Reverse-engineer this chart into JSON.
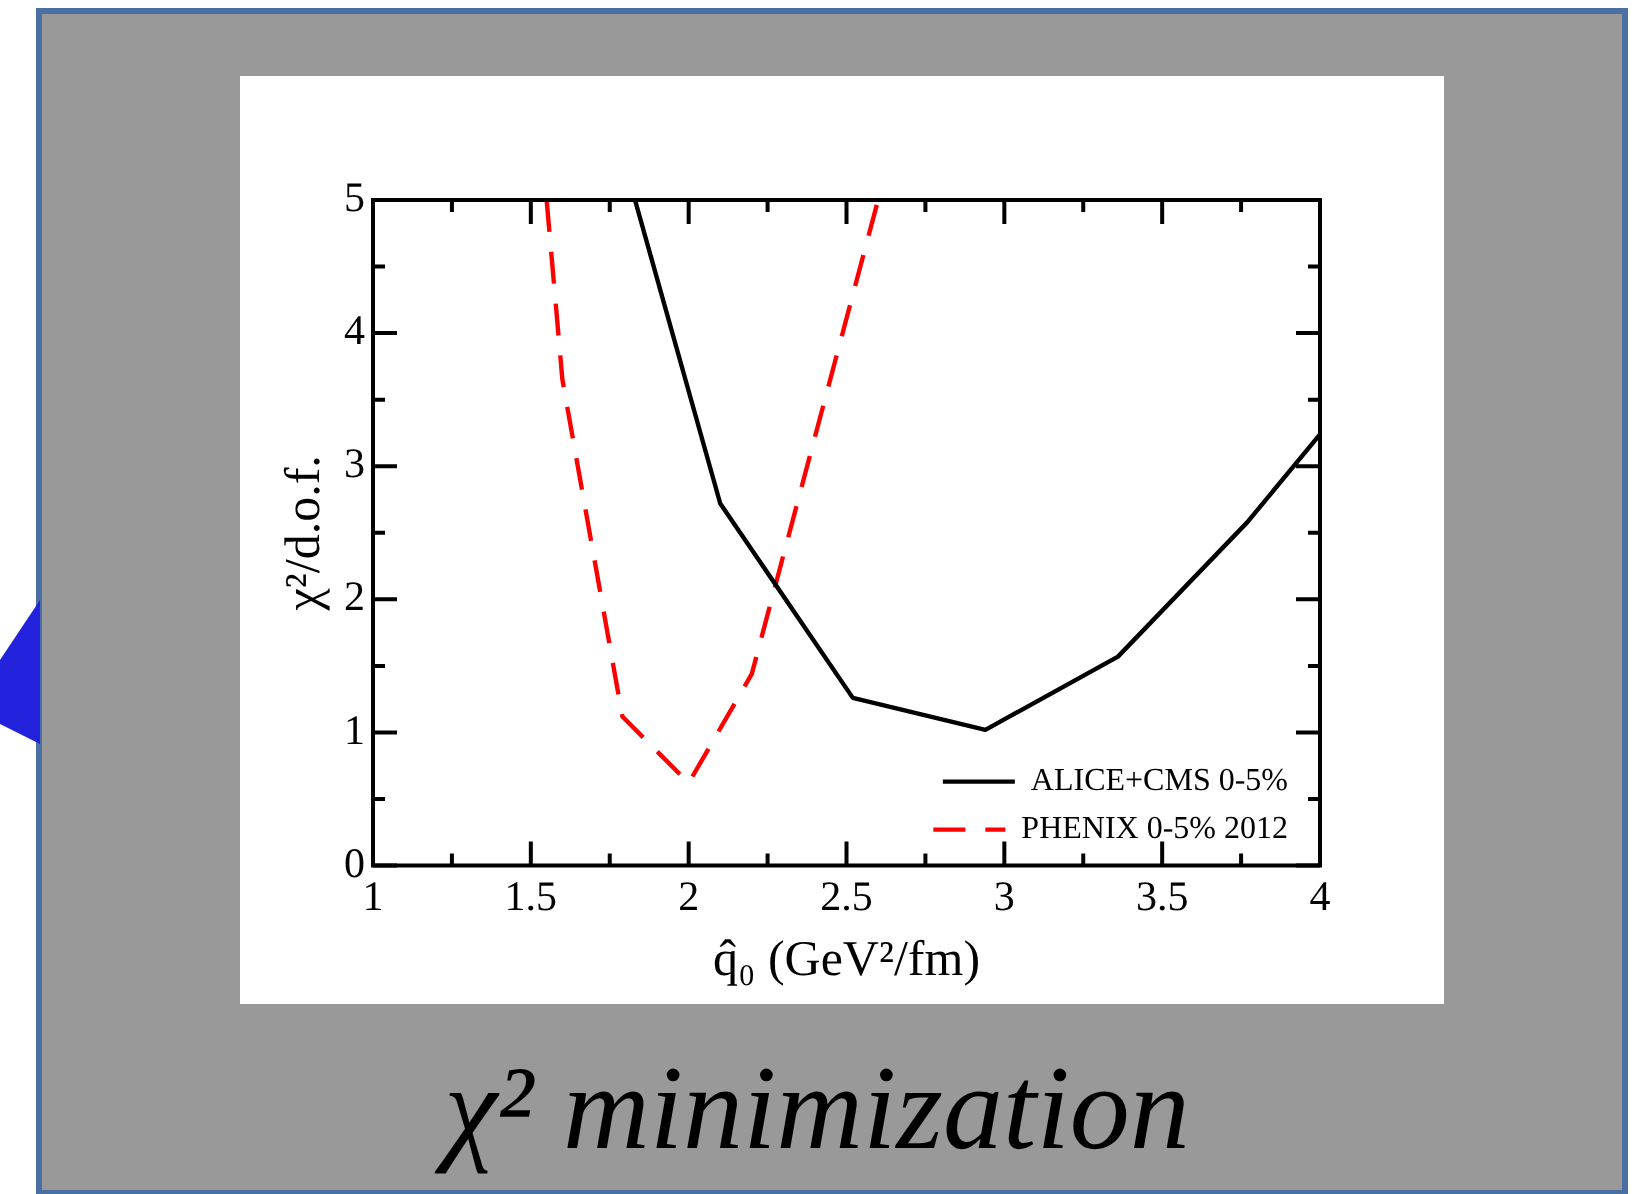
{
  "chart_data": {
    "type": "line",
    "title": "χ² minimization",
    "xlabel": "q̂₀ (GeV²/fm)",
    "ylabel": "χ²/d.o.f.",
    "xlim": [
      1,
      4
    ],
    "xticks": [
      1,
      {
        "value": 1.25,
        "label": null
      },
      1.5,
      {
        "value": 1.75,
        "label": null
      },
      2,
      {
        "value": 2.25,
        "label": null
      },
      2.5,
      {
        "value": 2.75,
        "label": null
      },
      3,
      {
        "value": 3.25,
        "label": null
      },
      3.5,
      {
        "value": 3.75,
        "label": null
      },
      4
    ],
    "ylim": [
      0,
      5
    ],
    "yticks": [
      0,
      {
        "value": 0.5,
        "label": null
      },
      1,
      {
        "value": 1.5,
        "label": null
      },
      2,
      {
        "value": 2.5,
        "label": null
      },
      3,
      {
        "value": 3.5,
        "label": null
      },
      4,
      {
        "value": 4.5,
        "label": null
      },
      5
    ],
    "grid": false,
    "legend": "bottom right",
    "marker": "none",
    "series": [
      {
        "name": "ALICE+CMS 0-5%",
        "color": "#000000",
        "line_style": "solid",
        "x": [
          1.83,
          2.1,
          2.52,
          2.94,
          3.36,
          3.77,
          4.0
        ],
        "values": [
          5,
          2.72,
          1.26,
          1.02,
          1.57,
          2.58,
          3.24
        ]
      },
      {
        "name": "PHENIX 0-5% 2012",
        "color": "#ff0000",
        "line_style": "dashed",
        "x": [
          1.55,
          1.6,
          1.79,
          2.0,
          2.2,
          2.6
        ],
        "values": [
          5,
          3.65,
          1.12,
          0.62,
          1.44,
          5
        ]
      }
    ]
  }
}
